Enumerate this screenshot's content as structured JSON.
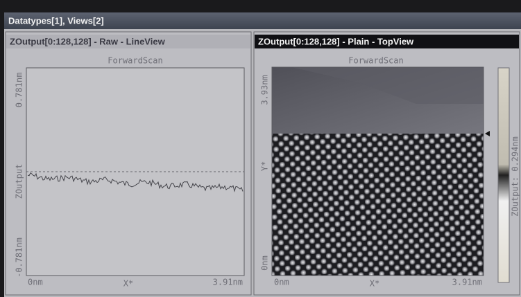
{
  "window": {
    "title": "Datatypes[1], Views[2]"
  },
  "views": [
    {
      "title": "ZOutput[0:128,128] - Raw - LineView",
      "scan": "ForwardScan",
      "y_top": "0.781nm",
      "y_label": "ZOutput",
      "y_bottom": "-0.781nm",
      "x_left": "0nm",
      "x_label": "X*",
      "x_right": "3.91nm"
    },
    {
      "title": "ZOutput[0:128,128] - Plain - TopView",
      "scan": "ForwardScan",
      "y_top": "3.93nm",
      "y_label": "Y*",
      "y_bottom": "0nm",
      "x_left": "0nm",
      "x_label": "X*",
      "x_right": "3.91nm",
      "colorbar_label": "ZOutput: 0.294nm"
    }
  ]
}
